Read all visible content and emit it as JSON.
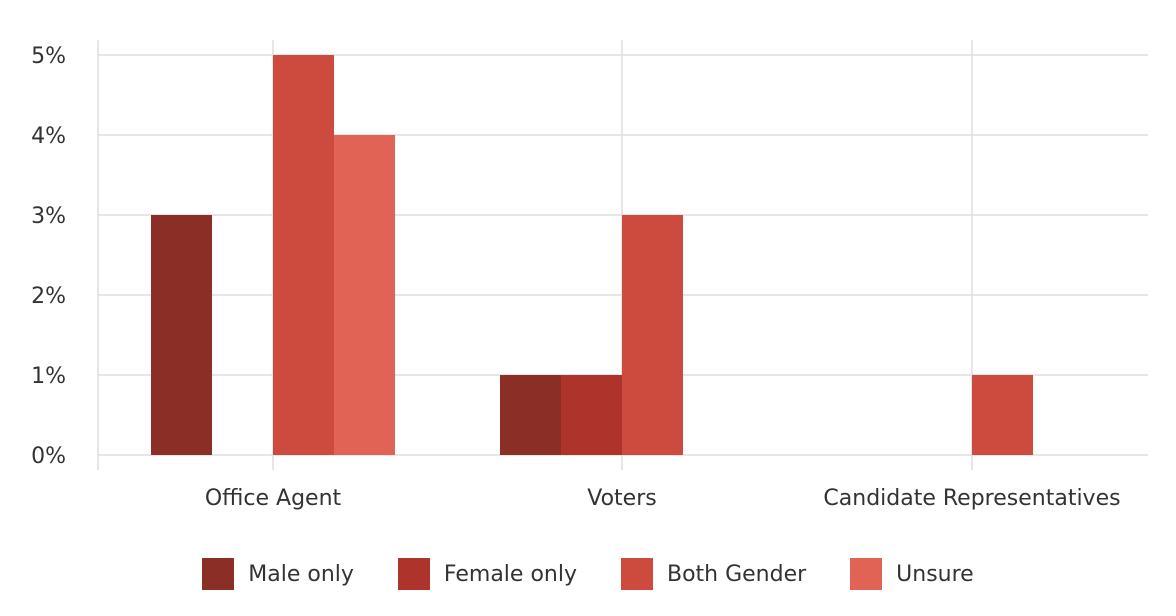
{
  "chart_data": {
    "type": "bar",
    "categories": [
      "Office Agent",
      "Voters",
      "Candidate Representatives"
    ],
    "series": [
      {
        "name": "Male only",
        "color": "#8B2E26",
        "values": [
          3,
          1,
          0
        ]
      },
      {
        "name": "Female only",
        "color": "#AE342B",
        "values": [
          0,
          1,
          0
        ]
      },
      {
        "name": "Both Gender",
        "color": "#CC4A3E",
        "values": [
          5,
          3,
          1
        ]
      },
      {
        "name": "Unsure",
        "color": "#E06355",
        "values": [
          4,
          0,
          0
        ]
      }
    ],
    "yticks": [
      "0%",
      "1%",
      "2%",
      "3%",
      "4%",
      "5%"
    ],
    "ylim": [
      0,
      5
    ],
    "grid": true,
    "legend_position": "bottom"
  }
}
